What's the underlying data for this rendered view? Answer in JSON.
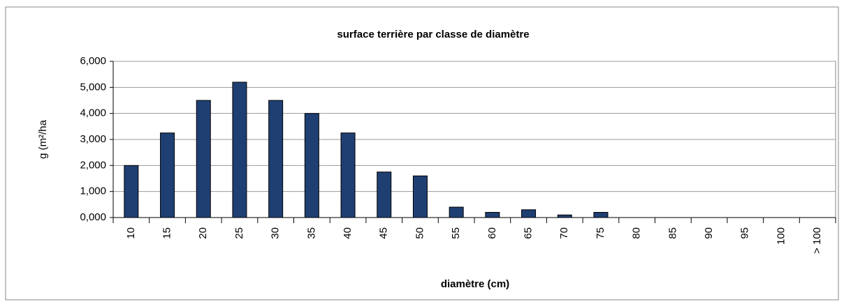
{
  "chart_data": {
    "type": "bar",
    "title": "surface terrière par classe de diamètre",
    "x_label": "diamètre (cm)",
    "y_label": "g (m²/ha",
    "categories": [
      "10",
      "15",
      "20",
      "25",
      "30",
      "35",
      "40",
      "45",
      "50",
      "55",
      "60",
      "65",
      "70",
      "75",
      "80",
      "85",
      "90",
      "95",
      "100",
      "> 100"
    ],
    "values": [
      2.0,
      3.25,
      4.5,
      5.2,
      4.5,
      4.0,
      3.25,
      1.75,
      1.6,
      0.4,
      0.2,
      0.3,
      0.1,
      0.2,
      0,
      0,
      0,
      0,
      0,
      0
    ],
    "color": "#1f3f73",
    "ylim": [
      0,
      6
    ],
    "yticks": [
      {
        "value": 0,
        "label": "0,000"
      },
      {
        "value": 1,
        "label": "1,000"
      },
      {
        "value": 2,
        "label": "2,000"
      },
      {
        "value": 3,
        "label": "3,000"
      },
      {
        "value": 4,
        "label": "4,000"
      },
      {
        "value": 5,
        "label": "5,000"
      },
      {
        "value": 6,
        "label": "6,000"
      }
    ],
    "grid": true
  }
}
